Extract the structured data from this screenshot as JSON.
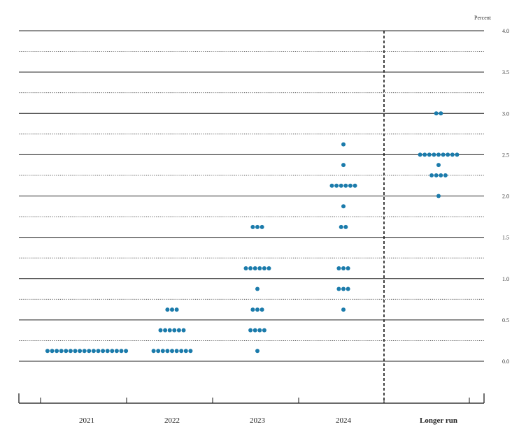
{
  "chart_data": {
    "type": "scatter",
    "ylabel": "Percent",
    "ylim": [
      -0.25,
      4.0
    ],
    "y_ticks": [
      "0.0",
      "0.5",
      "1.0",
      "1.5",
      "2.0",
      "2.5",
      "3.0",
      "3.5",
      "4.0"
    ],
    "categories": [
      "2021",
      "2022",
      "2023",
      "2024",
      "Longer run"
    ],
    "dot_color": "#1b7bab",
    "grid_solid_every": 0.5,
    "grid_dotted_every": 0.25,
    "divider_after_category": "2024",
    "dots": [
      {
        "x": "2021",
        "y": 0.125,
        "count": 18
      },
      {
        "x": "2022",
        "y": 0.125,
        "count": 9
      },
      {
        "x": "2022",
        "y": 0.375,
        "count": 6
      },
      {
        "x": "2022",
        "y": 0.625,
        "count": 3
      },
      {
        "x": "2023",
        "y": 0.125,
        "count": 1
      },
      {
        "x": "2023",
        "y": 0.375,
        "count": 4
      },
      {
        "x": "2023",
        "y": 0.625,
        "count": 3
      },
      {
        "x": "2023",
        "y": 0.875,
        "count": 1
      },
      {
        "x": "2023",
        "y": 1.125,
        "count": 6
      },
      {
        "x": "2023",
        "y": 1.625,
        "count": 3
      },
      {
        "x": "2024",
        "y": 0.625,
        "count": 1
      },
      {
        "x": "2024",
        "y": 0.875,
        "count": 3
      },
      {
        "x": "2024",
        "y": 1.125,
        "count": 3
      },
      {
        "x": "2024",
        "y": 1.625,
        "count": 2
      },
      {
        "x": "2024",
        "y": 1.875,
        "count": 1
      },
      {
        "x": "2024",
        "y": 2.125,
        "count": 6
      },
      {
        "x": "2024",
        "y": 2.375,
        "count": 1
      },
      {
        "x": "2024",
        "y": 2.625,
        "count": 1
      },
      {
        "x": "Longer run",
        "y": 2.0,
        "count": 1
      },
      {
        "x": "Longer run",
        "y": 2.25,
        "count": 4
      },
      {
        "x": "Longer run",
        "y": 2.375,
        "count": 1
      },
      {
        "x": "Longer run",
        "y": 2.5,
        "count": 9
      },
      {
        "x": "Longer run",
        "y": 3.0,
        "count": 2
      }
    ]
  }
}
